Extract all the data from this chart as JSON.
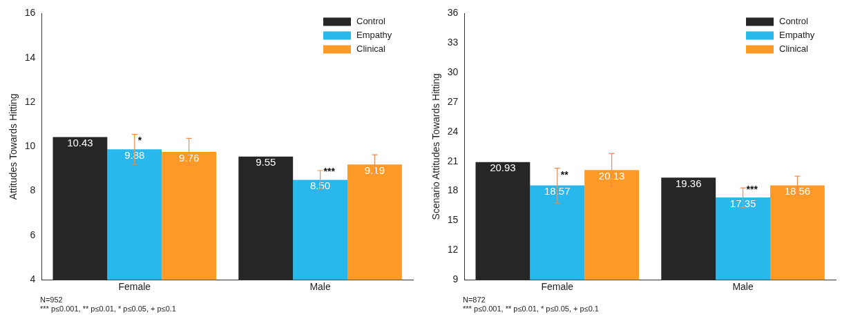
{
  "chart_data": [
    {
      "type": "bar",
      "ylabel": "Attitudes Towards Hitting",
      "categories": [
        "Female",
        "Male"
      ],
      "ylim": [
        4,
        16
      ],
      "yticks": [
        4,
        6,
        8,
        10,
        12,
        14,
        16
      ],
      "legend": "top right",
      "grid": false,
      "series": [
        {
          "name": "Control",
          "color": "#262626",
          "values": [
            10.43,
            9.55
          ],
          "value_labels": [
            "10.43",
            "9.55"
          ]
        },
        {
          "name": "Empathy",
          "color": "#29b8ec",
          "values": [
            9.88,
            8.5
          ],
          "value_labels": [
            "9.88",
            "8.50"
          ],
          "errors": [
            [
              9.2,
              10.55
            ],
            [
              8.09,
              8.92
            ]
          ]
        },
        {
          "name": "Clinical",
          "color": "#fd9a27",
          "values": [
            9.76,
            9.19
          ],
          "value_labels": [
            "9.76",
            "9.19"
          ],
          "errors": [
            [
              9.15,
              10.37
            ],
            [
              8.76,
              9.63
            ]
          ]
        }
      ],
      "annotations": [
        {
          "text": "*",
          "x": "Female",
          "y": 10.25
        },
        {
          "text": "***",
          "x": "Male",
          "y": 8.85
        },
        "N=952",
        "*** p≤0.001, ** p≤0.01, * p≤0.05, + p≤0.1"
      ]
    },
    {
      "type": "bar",
      "ylabel": "Scenario Attitudes Towards Hitting",
      "categories": [
        "Female",
        "Male"
      ],
      "ylim": [
        9,
        36
      ],
      "yticks": [
        9,
        12,
        15,
        18,
        21,
        24,
        27,
        30,
        33,
        36
      ],
      "legend": "top right",
      "grid": false,
      "series": [
        {
          "name": "Control",
          "color": "#262626",
          "values": [
            20.93,
            19.36
          ],
          "value_labels": [
            "20.93",
            "19.36"
          ]
        },
        {
          "name": "Empathy",
          "color": "#29b8ec",
          "values": [
            18.57,
            17.35
          ],
          "value_labels": [
            "18.57",
            "17.35"
          ],
          "errors": [
            [
              16.79,
              20.31
            ],
            [
              16.3,
              18.32
            ]
          ]
        },
        {
          "name": "Clinical",
          "color": "#fd9a27",
          "values": [
            20.13,
            18.56
          ],
          "value_labels": [
            "20.13",
            "18.56"
          ],
          "errors": [
            [
              18.46,
              21.79
            ],
            [
              17.6,
              19.5
            ]
          ]
        }
      ],
      "annotations": [
        {
          "text": "**",
          "x": "Female",
          "y": 19.6
        },
        {
          "text": "***",
          "x": "Male",
          "y": 18.1
        },
        "N=872",
        "*** p≤0.001, ** p≤0.01, * p≤0.05, + p≤0.1"
      ]
    }
  ]
}
